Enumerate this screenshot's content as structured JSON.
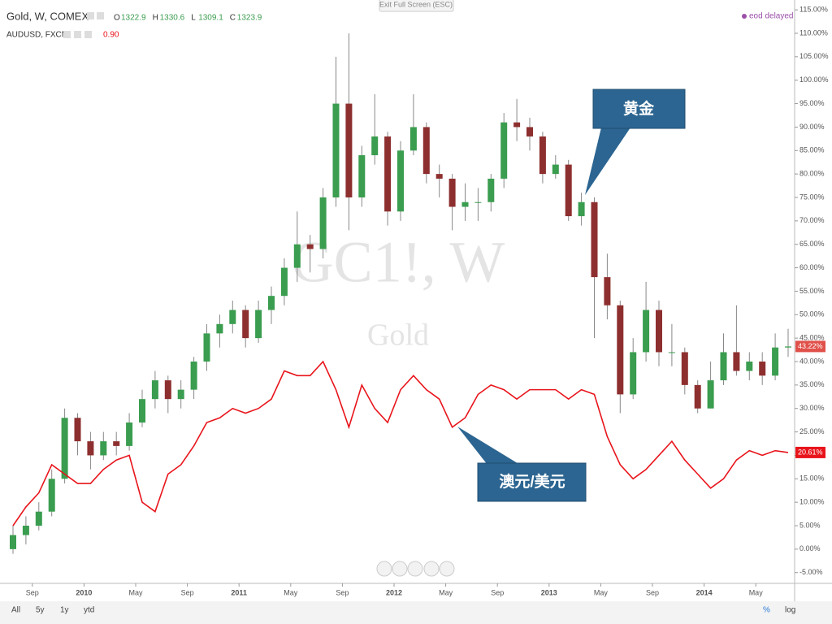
{
  "header": {
    "exit": "Exit Full Screen (ESC)",
    "status": "eod delayed",
    "symbol": "Gold, W, COMEX",
    "ohlc": [
      {
        "label": "O",
        "value": "1322.9"
      },
      {
        "label": "H",
        "value": "1330.6"
      },
      {
        "label": "L",
        "value": "1309.1"
      },
      {
        "label": "C",
        "value": "1323.9"
      }
    ],
    "compare_symbol": "AUDUSD, FXCM",
    "compare_value": "0.90"
  },
  "watermark": {
    "title": "GC1!, W",
    "subtitle": "Gold"
  },
  "toolbar": {
    "ranges": [
      "All",
      "5y",
      "1y",
      "ytd"
    ],
    "scales": [
      "%",
      "log"
    ]
  },
  "chart_data": {
    "type": "candlestick",
    "x": [
      "2009-07",
      "2009-08",
      "2009-09",
      "2009-10",
      "2009-11",
      "2009-12",
      "2010-01",
      "2010-02",
      "2010-03",
      "2010-04",
      "2010-05",
      "2010-06",
      "2010-07",
      "2010-08",
      "2010-09",
      "2010-10",
      "2010-11",
      "2010-12",
      "2011-01",
      "2011-02",
      "2011-03",
      "2011-04",
      "2011-05",
      "2011-06",
      "2011-07",
      "2011-08",
      "2011-09",
      "2011-10",
      "2011-11",
      "2011-12",
      "2012-01",
      "2012-02",
      "2012-03",
      "2012-04",
      "2012-05",
      "2012-06",
      "2012-07",
      "2012-08",
      "2012-09",
      "2012-10",
      "2012-11",
      "2012-12",
      "2013-01",
      "2013-02",
      "2013-03",
      "2013-04",
      "2013-05",
      "2013-06",
      "2013-07",
      "2013-08",
      "2013-09",
      "2013-10",
      "2013-11",
      "2013-12",
      "2014-01",
      "2014-02",
      "2014-03",
      "2014-04",
      "2014-05",
      "2014-06",
      "2014-07"
    ],
    "xticks": [
      {
        "value": "2009-09",
        "label": "Sep"
      },
      {
        "value": "2010-01",
        "label": "2010"
      },
      {
        "value": "2010-05",
        "label": "May"
      },
      {
        "value": "2010-09",
        "label": "Sep"
      },
      {
        "value": "2011-01",
        "label": "2011"
      },
      {
        "value": "2011-05",
        "label": "May"
      },
      {
        "value": "2011-09",
        "label": "Sep"
      },
      {
        "value": "2012-01",
        "label": "2012"
      },
      {
        "value": "2012-05",
        "label": "May"
      },
      {
        "value": "2012-09",
        "label": "Sep"
      },
      {
        "value": "2013-01",
        "label": "2013"
      },
      {
        "value": "2013-05",
        "label": "May"
      },
      {
        "value": "2013-09",
        "label": "Sep"
      },
      {
        "value": "2014-01",
        "label": "2014"
      },
      {
        "value": "2014-05",
        "label": "May"
      }
    ],
    "ylim": [
      -7.3,
      117.1
    ],
    "yticks": [
      {
        "value": -5,
        "label": "-5.00%"
      },
      {
        "value": 0,
        "label": "0.00%"
      },
      {
        "value": 5,
        "label": "5.00%"
      },
      {
        "value": 10,
        "label": "10.00%"
      },
      {
        "value": 15,
        "label": "15.00%"
      },
      {
        "value": 20,
        "label": "20.00%"
      },
      {
        "value": 25,
        "label": "25.00%"
      },
      {
        "value": 30,
        "label": "30.00%"
      },
      {
        "value": 35,
        "label": "35.00%"
      },
      {
        "value": 40,
        "label": "40.00%"
      },
      {
        "value": 45,
        "label": "45.00%"
      },
      {
        "value": 50,
        "label": "50.00%"
      },
      {
        "value": 55,
        "label": "55.00%"
      },
      {
        "value": 60,
        "label": "60.00%"
      },
      {
        "value": 65,
        "label": "65.00%"
      },
      {
        "value": 70,
        "label": "70.00%"
      },
      {
        "value": 75,
        "label": "75.00%"
      },
      {
        "value": 80,
        "label": "80.00%"
      },
      {
        "value": 85,
        "label": "85.00%"
      },
      {
        "value": 90,
        "label": "90.00%"
      },
      {
        "value": 95,
        "label": "95.00%"
      },
      {
        "value": 100,
        "label": "100.00%"
      },
      {
        "value": 105,
        "label": "105.00%"
      },
      {
        "value": 110,
        "label": "110.00%"
      },
      {
        "value": 115,
        "label": "115.00%"
      }
    ],
    "series": [
      {
        "name": "黄金",
        "type": "candlestick",
        "up_color": "#3a9d4f",
        "down_color": "#8e2f2f",
        "last_label": "43.22%",
        "last_color": "#e0514a",
        "open": [
          0,
          3,
          5,
          8,
          15,
          28,
          23,
          20,
          23,
          22,
          27,
          32,
          36,
          32,
          34,
          40,
          46,
          48,
          51,
          45,
          51,
          54,
          60,
          65,
          64,
          75,
          95,
          75,
          84,
          88,
          72,
          85,
          90,
          80,
          79,
          73,
          74,
          74,
          79,
          91,
          90,
          88,
          80,
          82,
          71,
          74,
          58,
          52,
          33,
          42,
          51,
          42,
          42,
          35,
          30,
          36,
          42,
          38,
          40,
          37,
          43
        ],
        "high": [
          5,
          7,
          10,
          17,
          30,
          29,
          25,
          25,
          25,
          29,
          34,
          38,
          37,
          36,
          41,
          48,
          50,
          53,
          52,
          53,
          56,
          62,
          72,
          67,
          77,
          105,
          110,
          86,
          97,
          89,
          87,
          97,
          91,
          82,
          80,
          78,
          77,
          80,
          93,
          96,
          92,
          89,
          84,
          83,
          76,
          75,
          63,
          53,
          45,
          57,
          53,
          48,
          43,
          36,
          40,
          46,
          52,
          42,
          42,
          46,
          47
        ],
        "low": [
          -1,
          1,
          4,
          7,
          14,
          20,
          17,
          19,
          20,
          21,
          26,
          30,
          29,
          30,
          32,
          38,
          43,
          46,
          43,
          44,
          48,
          52,
          57,
          59,
          62,
          73,
          68,
          73,
          82,
          69,
          70,
          84,
          78,
          75,
          68,
          70,
          70,
          72,
          77,
          87,
          85,
          78,
          79,
          70,
          69,
          45,
          49,
          29,
          32,
          40,
          39,
          39,
          33,
          29,
          30,
          35,
          37,
          36,
          35,
          36,
          41
        ],
        "values": [
          3,
          5,
          8,
          15,
          28,
          23,
          20,
          23,
          22,
          27,
          32,
          36,
          32,
          34,
          40,
          46,
          48,
          51,
          45,
          51,
          54,
          60,
          65,
          64,
          75,
          95,
          75,
          84,
          88,
          72,
          85,
          90,
          80,
          79,
          73,
          74,
          74,
          79,
          91,
          90,
          88,
          80,
          82,
          71,
          74,
          58,
          52,
          33,
          42,
          51,
          42,
          42,
          35,
          30,
          36,
          42,
          38,
          40,
          37,
          43,
          43.22
        ]
      },
      {
        "name": "澳元/美元",
        "type": "line",
        "color": "#e8141b",
        "last_label": "20.61%",
        "last_color": "#e8141b",
        "values": [
          5,
          9,
          12,
          18,
          16,
          14,
          14,
          17,
          19,
          20,
          10,
          8,
          16,
          18,
          22,
          27,
          28,
          30,
          29,
          30,
          32,
          38,
          37,
          37,
          40,
          34,
          26,
          35,
          30,
          27,
          34,
          37,
          34,
          32,
          26,
          28,
          33,
          35,
          34,
          32,
          34,
          34,
          34,
          32,
          34,
          33,
          24,
          18,
          15,
          17,
          20,
          23,
          19,
          16,
          13,
          15,
          19,
          21,
          20,
          21,
          20.61
        ]
      }
    ]
  }
}
